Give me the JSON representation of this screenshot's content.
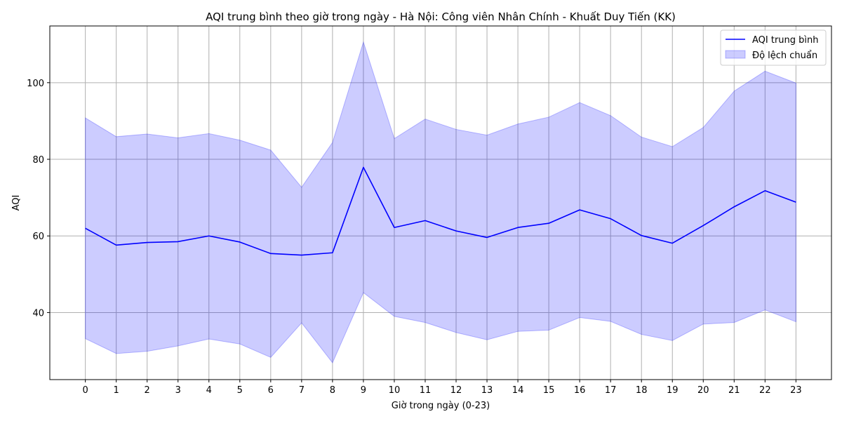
{
  "chart_data": {
    "type": "line",
    "title": "AQI trung bình theo giờ trong ngày - Hà Nội: Công viên Nhân Chính - Khuất Duy Tiến (KK)",
    "xlabel": "Giờ trong ngày (0-23)",
    "ylabel": "AQI",
    "x": [
      0,
      1,
      2,
      3,
      4,
      5,
      6,
      7,
      8,
      9,
      10,
      11,
      12,
      13,
      14,
      15,
      16,
      17,
      18,
      19,
      20,
      21,
      22,
      23
    ],
    "xticks": [
      "0",
      "1",
      "2",
      "3",
      "4",
      "5",
      "6",
      "7",
      "8",
      "9",
      "10",
      "11",
      "12",
      "13",
      "14",
      "15",
      "16",
      "17",
      "18",
      "19",
      "20",
      "21",
      "22",
      "23"
    ],
    "xlim": [
      -1.15,
      24.15
    ],
    "ylim": [
      22.5,
      114.8
    ],
    "yticks": [
      40,
      60,
      80,
      100
    ],
    "yticklabels": [
      "40",
      "60",
      "80",
      "100"
    ],
    "grid": true,
    "legend_position": "upper-right",
    "series": [
      {
        "name": "AQI trung bình",
        "color": "#0000ff",
        "values": [
          62.0,
          57.6,
          58.3,
          58.5,
          60.0,
          58.4,
          55.4,
          55.0,
          55.6,
          77.9,
          62.2,
          64.0,
          61.3,
          59.6,
          62.2,
          63.3,
          66.8,
          64.5,
          60.1,
          58.1,
          62.7,
          67.6,
          71.8,
          68.8
        ]
      }
    ],
    "band": {
      "name": "Độ lệch chuẩn",
      "color": "#0000ff",
      "lower": [
        33.2,
        29.3,
        29.9,
        31.3,
        33.1,
        31.8,
        28.3,
        37.3,
        26.9,
        45.2,
        39.0,
        37.4,
        34.8,
        32.9,
        35.1,
        35.4,
        38.7,
        37.7,
        34.3,
        32.7,
        37.0,
        37.4,
        40.7,
        37.6
      ],
      "upper": [
        90.8,
        85.9,
        86.6,
        85.6,
        86.7,
        85.0,
        82.4,
        72.7,
        84.4,
        110.6,
        85.4,
        90.5,
        87.8,
        86.3,
        89.2,
        91.0,
        94.8,
        91.4,
        85.8,
        83.3,
        88.3,
        97.8,
        103.0,
        99.9
      ]
    }
  }
}
